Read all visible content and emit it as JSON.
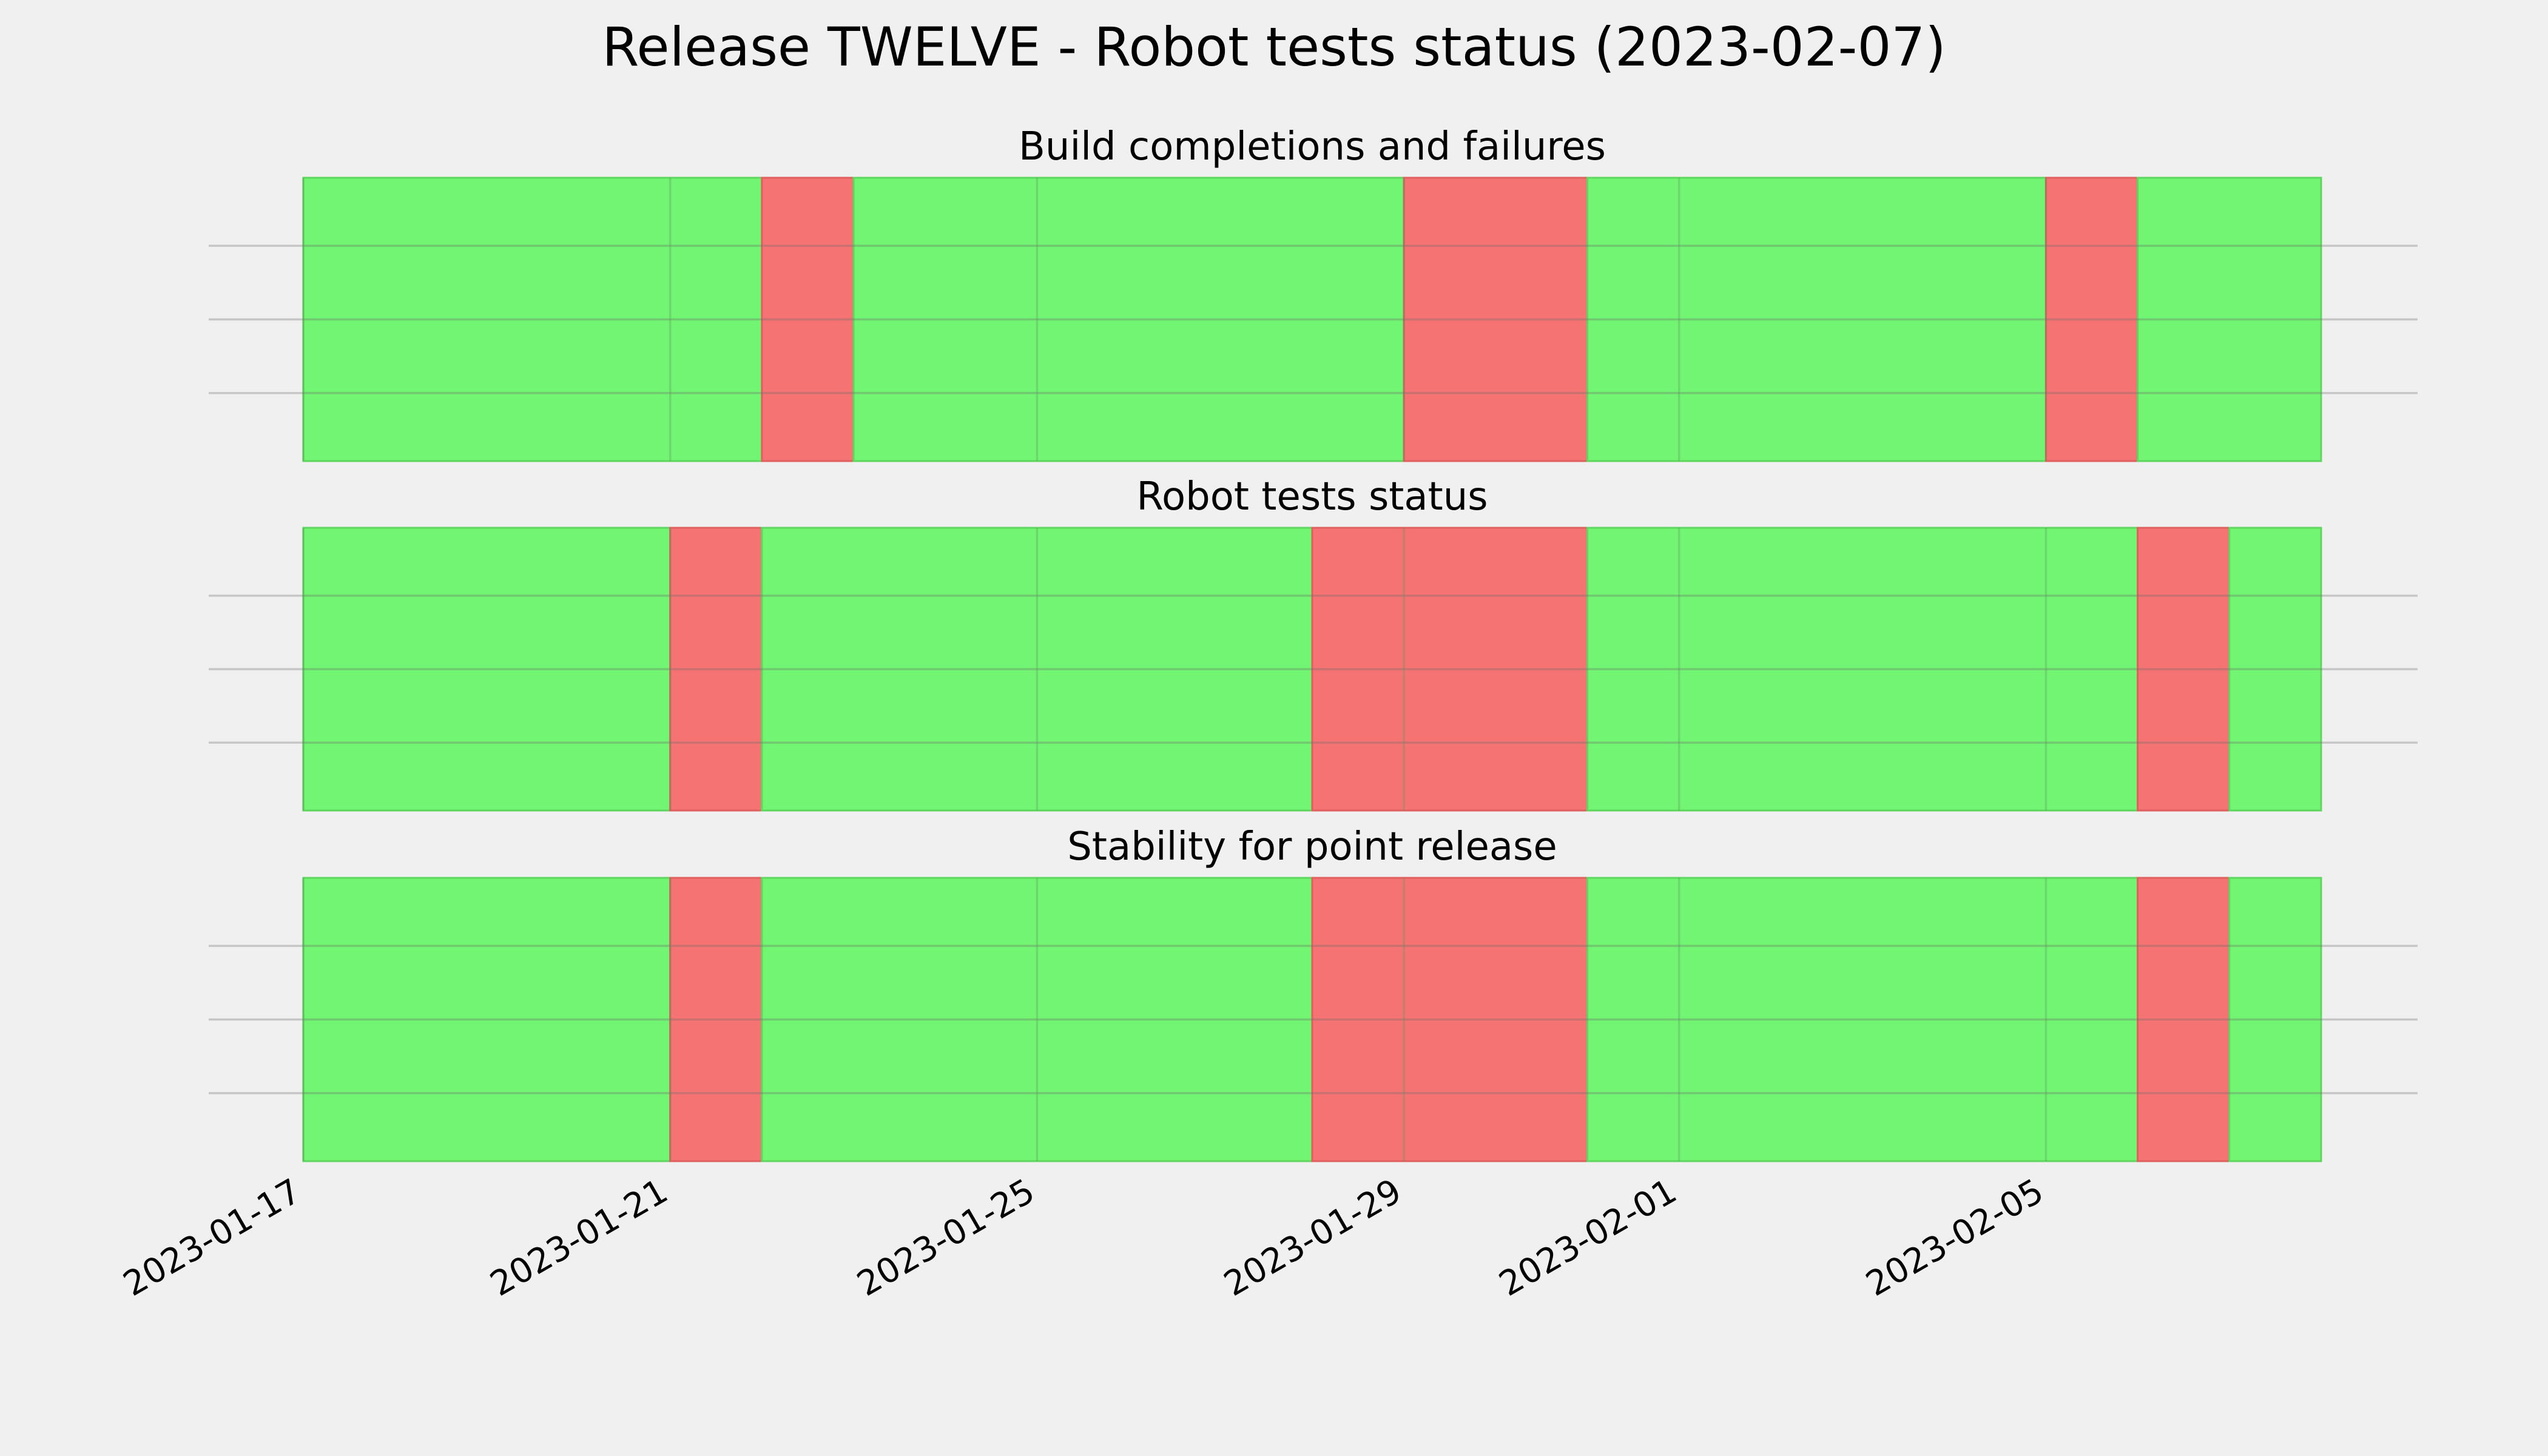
{
  "title": "Release TWELVE - Robot tests status (2023-02-07)",
  "colors": {
    "background": "#f0f0f0",
    "pass": "#72f572",
    "fail": "#f57473",
    "grid": "#c9c9c9"
  },
  "chart_data": [
    {
      "type": "timeline",
      "title": "Build completions and failures",
      "xlim": [
        "2023-01-17",
        "2023-02-08"
      ],
      "grid": true,
      "segments": [
        {
          "start": "2023-01-17",
          "end": "2023-01-22",
          "status": "pass"
        },
        {
          "start": "2023-01-22",
          "end": "2023-01-23",
          "status": "fail"
        },
        {
          "start": "2023-01-23",
          "end": "2023-01-29",
          "status": "pass"
        },
        {
          "start": "2023-01-29",
          "end": "2023-01-31",
          "status": "fail"
        },
        {
          "start": "2023-01-31",
          "end": "2023-02-05",
          "status": "pass"
        },
        {
          "start": "2023-02-05",
          "end": "2023-02-06",
          "status": "fail"
        },
        {
          "start": "2023-02-06",
          "end": "2023-02-08",
          "status": "pass"
        }
      ]
    },
    {
      "type": "timeline",
      "title": "Robot tests status",
      "xlim": [
        "2023-01-17",
        "2023-02-08"
      ],
      "grid": true,
      "segments": [
        {
          "start": "2023-01-17",
          "end": "2023-01-21",
          "status": "pass"
        },
        {
          "start": "2023-01-21",
          "end": "2023-01-22",
          "status": "fail"
        },
        {
          "start": "2023-01-22",
          "end": "2023-01-28",
          "status": "pass"
        },
        {
          "start": "2023-01-28",
          "end": "2023-01-31",
          "status": "fail"
        },
        {
          "start": "2023-01-31",
          "end": "2023-02-06",
          "status": "pass"
        },
        {
          "start": "2023-02-06",
          "end": "2023-02-07",
          "status": "fail"
        },
        {
          "start": "2023-02-07",
          "end": "2023-02-08",
          "status": "pass"
        }
      ]
    },
    {
      "type": "timeline",
      "title": "Stability for point release",
      "xlim": [
        "2023-01-17",
        "2023-02-08"
      ],
      "grid": true,
      "x_tick_labels": [
        "2023-01-17",
        "2023-01-21",
        "2023-01-25",
        "2023-01-29",
        "2023-02-01",
        "2023-02-05"
      ],
      "segments": [
        {
          "start": "2023-01-17",
          "end": "2023-01-21",
          "status": "pass"
        },
        {
          "start": "2023-01-21",
          "end": "2023-01-22",
          "status": "fail"
        },
        {
          "start": "2023-01-22",
          "end": "2023-01-28",
          "status": "pass"
        },
        {
          "start": "2023-01-28",
          "end": "2023-01-31",
          "status": "fail"
        },
        {
          "start": "2023-01-31",
          "end": "2023-02-06",
          "status": "pass"
        },
        {
          "start": "2023-02-06",
          "end": "2023-02-07",
          "status": "fail"
        },
        {
          "start": "2023-02-07",
          "end": "2023-02-08",
          "status": "pass"
        }
      ]
    }
  ]
}
